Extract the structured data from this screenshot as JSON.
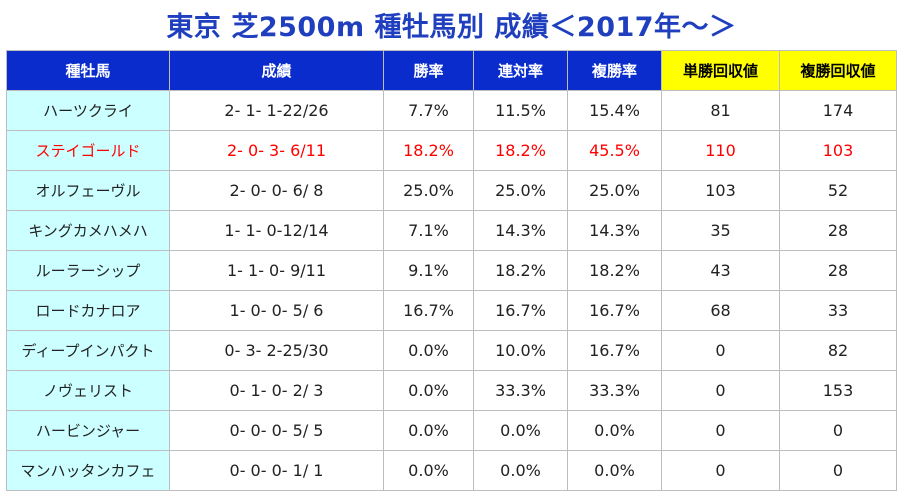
{
  "title": "東京 芝2500m 種牡馬別 成績＜2017年～＞",
  "colors": {
    "header_bg": "#0a2ccd",
    "header_highlight_bg": "#ffff00",
    "sire_col_bg": "#ccffff",
    "highlight_text": "#ff0000",
    "title_text": "#1f3fbf"
  },
  "chart_data": {
    "type": "table",
    "title": "東京 芝2500m 種牡馬別 成績＜2017年～＞",
    "columns": [
      "種牡馬",
      "成績",
      "勝率",
      "連対率",
      "複勝率",
      "単勝回収値",
      "複勝回収値"
    ],
    "highlight_columns": [
      "単勝回収値",
      "複勝回収値"
    ],
    "highlight_row": "ステイゴールド",
    "rows": [
      [
        "ハーツクライ",
        "2- 1- 1-22/26",
        "7.7%",
        "11.5%",
        "15.4%",
        "81",
        "174"
      ],
      [
        "ステイゴールド",
        "2- 0- 3- 6/11",
        "18.2%",
        "18.2%",
        "45.5%",
        "110",
        "103"
      ],
      [
        "オルフェーヴル",
        "2- 0- 0- 6/ 8",
        "25.0%",
        "25.0%",
        "25.0%",
        "103",
        "52"
      ],
      [
        "キングカメハメハ",
        "1- 1- 0-12/14",
        "7.1%",
        "14.3%",
        "14.3%",
        "35",
        "28"
      ],
      [
        "ルーラーシップ",
        "1- 1- 0- 9/11",
        "9.1%",
        "18.2%",
        "18.2%",
        "43",
        "28"
      ],
      [
        "ロードカナロア",
        "1- 0- 0- 5/ 6",
        "16.7%",
        "16.7%",
        "16.7%",
        "68",
        "33"
      ],
      [
        "ディープインパクト",
        "0- 3- 2-25/30",
        "0.0%",
        "10.0%",
        "16.7%",
        "0",
        "82"
      ],
      [
        "ノヴェリスト",
        "0- 1- 0- 2/ 3",
        "0.0%",
        "33.3%",
        "33.3%",
        "0",
        "153"
      ],
      [
        "ハービンジャー",
        "0- 0- 0- 5/ 5",
        "0.0%",
        "0.0%",
        "0.0%",
        "0",
        "0"
      ],
      [
        "マンハッタンカフェ",
        "0- 0- 0- 1/ 1",
        "0.0%",
        "0.0%",
        "0.0%",
        "0",
        "0"
      ]
    ]
  }
}
